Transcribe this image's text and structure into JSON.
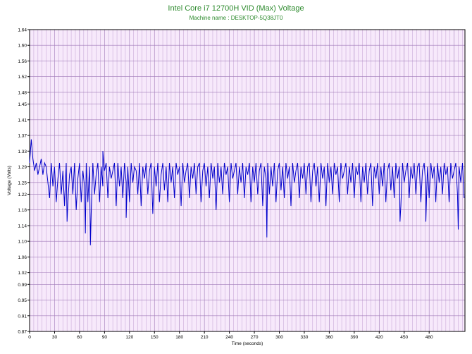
{
  "chart_data": {
    "type": "line",
    "title": "Intel Core i7 12700H VID (Max) Voltage",
    "subtitle": "Machine name : DESKTOP-5Q38JT0",
    "xlabel": "Time (seconds)",
    "ylabel": "Voltage (Volts)",
    "xlim": [
      0,
      523
    ],
    "ylim": [
      0.87,
      1.64
    ],
    "xticks": [
      0,
      30,
      60,
      90,
      120,
      150,
      180,
      210,
      240,
      270,
      300,
      330,
      360,
      390,
      420,
      450,
      480
    ],
    "yticks": [
      "0.87",
      "0.91",
      "0.95",
      "0.99",
      "1.02",
      "1.06",
      "1.10",
      "1.14",
      "1.18",
      "1.22",
      "1.25",
      "1.29",
      "1.33",
      "1.37",
      "1.41",
      "1.45",
      "1.48",
      "1.52",
      "1.56",
      "1.60",
      "1.64"
    ],
    "grid": true,
    "series": [
      {
        "color": "#0000cc",
        "x": [
          0,
          2,
          4,
          6,
          8,
          10,
          12,
          14,
          16,
          18,
          20,
          22,
          24,
          26,
          28,
          30,
          32,
          34,
          36,
          38,
          40,
          42,
          44,
          46,
          48,
          50,
          52,
          54,
          56,
          58,
          60,
          62,
          64,
          66,
          68,
          70,
          72,
          74,
          76,
          78,
          80,
          82,
          84,
          86,
          88,
          90,
          92,
          94,
          96,
          98,
          100,
          102,
          104,
          106,
          108,
          110,
          112,
          114,
          116,
          118,
          120,
          122,
          124,
          126,
          128,
          130,
          132,
          134,
          136,
          138,
          140,
          142,
          144,
          146,
          148,
          150,
          152,
          154,
          156,
          158,
          160,
          162,
          164,
          166,
          168,
          170,
          172,
          174,
          176,
          178,
          180,
          182,
          184,
          186,
          188,
          190,
          192,
          194,
          196,
          198,
          200,
          202,
          204,
          206,
          208,
          210,
          212,
          214,
          216,
          218,
          220,
          222,
          224,
          226,
          228,
          230,
          232,
          234,
          236,
          238,
          240,
          242,
          244,
          246,
          248,
          250,
          252,
          254,
          256,
          258,
          260,
          262,
          264,
          266,
          268,
          270,
          272,
          274,
          276,
          278,
          280,
          282,
          284,
          286,
          288,
          290,
          292,
          294,
          296,
          298,
          300,
          302,
          304,
          306,
          308,
          310,
          312,
          314,
          316,
          318,
          320,
          322,
          324,
          326,
          328,
          330,
          332,
          334,
          336,
          338,
          340,
          342,
          344,
          346,
          348,
          350,
          352,
          354,
          356,
          358,
          360,
          362,
          364,
          366,
          368,
          370,
          372,
          374,
          376,
          378,
          380,
          382,
          384,
          386,
          388,
          390,
          392,
          394,
          396,
          398,
          400,
          402,
          404,
          406,
          408,
          410,
          412,
          414,
          416,
          418,
          420,
          422,
          424,
          426,
          428,
          430,
          432,
          434,
          436,
          438,
          440,
          442,
          444,
          446,
          448,
          450,
          452,
          454,
          456,
          458,
          460,
          462,
          464,
          466,
          468,
          470,
          472,
          474,
          476,
          478,
          480,
          482,
          484,
          486,
          488,
          490,
          492,
          494,
          496,
          498,
          500,
          502,
          504,
          506,
          508,
          510,
          512,
          514,
          516,
          518,
          520,
          522
        ],
        "y": [
          1.3,
          1.36,
          1.31,
          1.28,
          1.3,
          1.27,
          1.29,
          1.31,
          1.27,
          1.3,
          1.29,
          1.25,
          1.21,
          1.3,
          1.24,
          1.29,
          1.2,
          1.26,
          1.3,
          1.22,
          1.28,
          1.19,
          1.3,
          1.2,
          1.27,
          1.29,
          1.22,
          1.3,
          1.18,
          1.26,
          1.3,
          1.2,
          1.28,
          1.24,
          1.3,
          1.2,
          1.29,
          1.17,
          1.3,
          1.22,
          1.27,
          1.3,
          1.2,
          1.29,
          1.24,
          1.28,
          1.3,
          1.21,
          1.29,
          1.26,
          1.28,
          1.3,
          1.19,
          1.3,
          1.24,
          1.29,
          1.21,
          1.3,
          1.25,
          1.29,
          1.2,
          1.3,
          1.25,
          1.29,
          1.28,
          1.22,
          1.3,
          1.19,
          1.29,
          1.26,
          1.3,
          1.22,
          1.28,
          1.3,
          1.17,
          1.29,
          1.24,
          1.3,
          1.2,
          1.27,
          1.3,
          1.23,
          1.29,
          1.2,
          1.3,
          1.25,
          1.29,
          1.21,
          1.3,
          1.27,
          1.29,
          1.19,
          1.3,
          1.25,
          1.28,
          1.3,
          1.21,
          1.29,
          1.26,
          1.3,
          1.22,
          1.29,
          1.3,
          1.2,
          1.28,
          1.3,
          1.24,
          1.29,
          1.21,
          1.3,
          1.26,
          1.29,
          1.18,
          1.3,
          1.25,
          1.29,
          1.22,
          1.3,
          1.27,
          1.29,
          1.2,
          1.3,
          1.26,
          1.28,
          1.3,
          1.22,
          1.29,
          1.25,
          1.3,
          1.21,
          1.29,
          1.27,
          1.3,
          1.2,
          1.29,
          1.25,
          1.3,
          1.22,
          1.28,
          1.3,
          1.19,
          1.29,
          1.26,
          1.3,
          1.22,
          1.29,
          1.24,
          1.3,
          1.2,
          1.28,
          1.3,
          1.23,
          1.29,
          1.21,
          1.3,
          1.26,
          1.29,
          1.19,
          1.3,
          1.25,
          1.28,
          1.3,
          1.21,
          1.29,
          1.26,
          1.3,
          1.22,
          1.29,
          1.3,
          1.2,
          1.28,
          1.3,
          1.24,
          1.29,
          1.2,
          1.3,
          1.26,
          1.29,
          1.19,
          1.3,
          1.25,
          1.29,
          1.22,
          1.3,
          1.27,
          1.29,
          1.2,
          1.3,
          1.26,
          1.28,
          1.3,
          1.22,
          1.29,
          1.25,
          1.3,
          1.21,
          1.29,
          1.27,
          1.3,
          1.2,
          1.29,
          1.25,
          1.3,
          1.22,
          1.28,
          1.3,
          1.19,
          1.29,
          1.26,
          1.3,
          1.22,
          1.29,
          1.24,
          1.3,
          1.2,
          1.28,
          1.3,
          1.23,
          1.29,
          1.21,
          1.3,
          1.26,
          1.29,
          1.19,
          1.3,
          1.25,
          1.28,
          1.3,
          1.21,
          1.29,
          1.26,
          1.3,
          1.22,
          1.29,
          1.3,
          1.2,
          1.28,
          1.3,
          1.24,
          1.29,
          1.21,
          1.3,
          1.26,
          1.29,
          1.2,
          1.3,
          1.25,
          1.29,
          1.22,
          1.3,
          1.27,
          1.29,
          1.2,
          1.3,
          1.26,
          1.28,
          1.3,
          1.22,
          1.29,
          1.25,
          1.3,
          1.21
        ],
        "spikes": [
          {
            "x": 73,
            "y": 1.09
          },
          {
            "x": 67,
            "y": 1.12
          },
          {
            "x": 45,
            "y": 1.15
          },
          {
            "x": 88,
            "y": 1.33
          },
          {
            "x": 116,
            "y": 1.16
          },
          {
            "x": 285,
            "y": 1.11
          },
          {
            "x": 445,
            "y": 1.15
          },
          {
            "x": 476,
            "y": 1.15
          },
          {
            "x": 515,
            "y": 1.13
          }
        ]
      }
    ]
  }
}
